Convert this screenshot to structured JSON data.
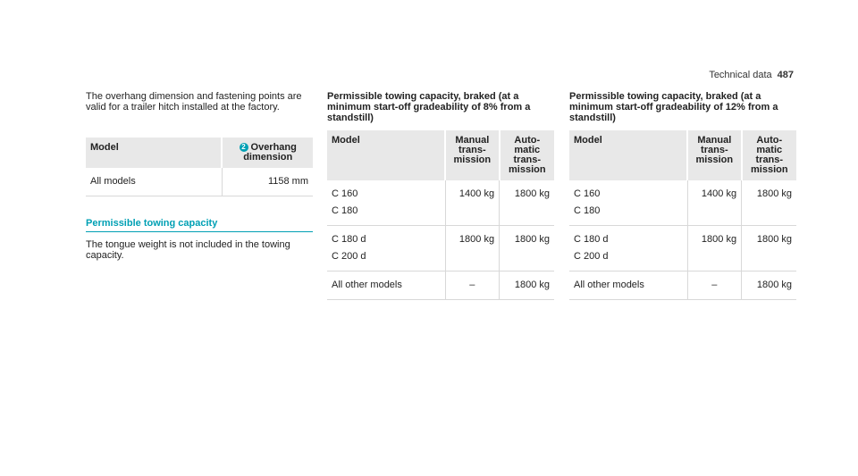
{
  "header": {
    "section": "Technical data",
    "page": "487"
  },
  "col1": {
    "intro": "The overhang dimension and fastening points are valid for a trailer hitch installed at the factory.",
    "table": {
      "col_model": "Model",
      "badge": "2",
      "col_overhang": "Overhang dimension",
      "row_model": "All models",
      "row_value": "1158 mm"
    },
    "section_title": "Permissible towing capacity",
    "section_text": "The tongue weight is not included in the towing capacity."
  },
  "col2": {
    "heading": "Permissible towing capacity, braked (at a minimum start-off gradeability of 8% from a standstill)",
    "headers": [
      "Model",
      "Manual trans-mission",
      "Auto-matic trans-mission"
    ],
    "rows": [
      [
        "C 160",
        "C 180",
        "1400 kg",
        "1800 kg"
      ],
      [
        "C 180 d",
        "C 200 d",
        "1800 kg",
        "1800 kg"
      ],
      [
        "All other models",
        "",
        "–",
        "1800 kg"
      ]
    ]
  },
  "col3": {
    "heading": "Permissible towing capacity, braked (at a minimum start-off gradeability of 12% from a standstill)",
    "headers": [
      "Model",
      "Manual trans-mission",
      "Auto-matic trans-mission"
    ],
    "rows": [
      [
        "C 160",
        "C 180",
        "1400 kg",
        "1800 kg"
      ],
      [
        "C 180 d",
        "C 200 d",
        "1800 kg",
        "1800 kg"
      ],
      [
        "All other models",
        "",
        "–",
        "1800 kg"
      ]
    ]
  }
}
